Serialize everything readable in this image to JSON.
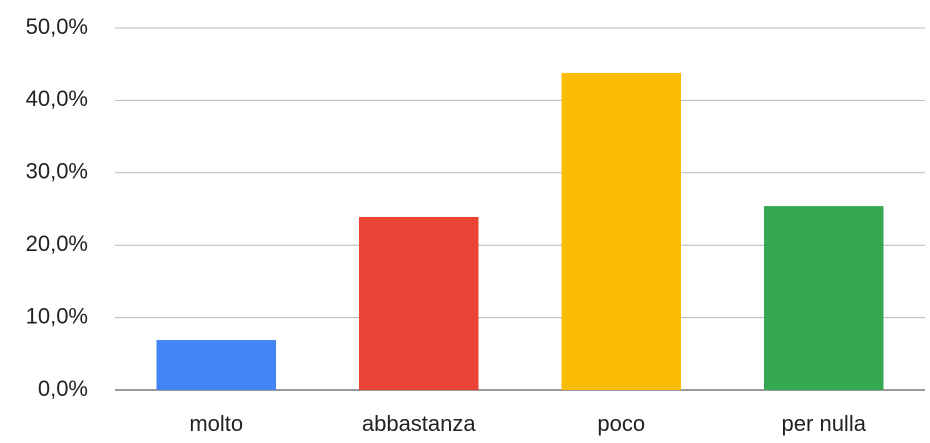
{
  "chart_data": {
    "type": "bar",
    "categories": [
      "molto",
      "abbastanza",
      "poco",
      "per nulla"
    ],
    "values": [
      6.9,
      23.9,
      43.8,
      25.4
    ],
    "colors": [
      "#4285f4",
      "#ea4335",
      "#fbbc04",
      "#34a853"
    ],
    "ylim": [
      0,
      50
    ],
    "yticks": [
      {
        "value": 0,
        "label": "0,0%"
      },
      {
        "value": 10,
        "label": "10,0%"
      },
      {
        "value": 20,
        "label": "20,0%"
      },
      {
        "value": 30,
        "label": "30,0%"
      },
      {
        "value": 40,
        "label": "40,0%"
      },
      {
        "value": 50,
        "label": "50,0%"
      }
    ],
    "grid": true
  }
}
